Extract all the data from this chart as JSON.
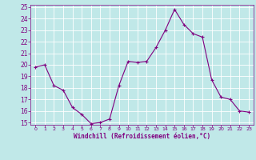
{
  "x": [
    0,
    1,
    2,
    3,
    4,
    5,
    6,
    7,
    8,
    9,
    10,
    11,
    12,
    13,
    14,
    15,
    16,
    17,
    18,
    19,
    20,
    21,
    22,
    23
  ],
  "y": [
    19.8,
    20.0,
    18.2,
    17.8,
    16.3,
    15.7,
    14.9,
    15.0,
    15.3,
    18.2,
    20.3,
    20.2,
    20.3,
    21.5,
    23.0,
    24.8,
    23.5,
    22.7,
    22.4,
    18.7,
    17.2,
    17.0,
    16.0,
    15.9
  ],
  "line_color": "#800080",
  "marker": "+",
  "marker_size": 3,
  "bg_color": "#c0e8e8",
  "grid_color": "#ffffff",
  "xlabel": "Windchill (Refroidissement éolien,°C)",
  "xlabel_color": "#800080",
  "tick_color": "#800080",
  "ylim": [
    15,
    25
  ],
  "xlim": [
    -0.5,
    23.5
  ],
  "yticks": [
    15,
    16,
    17,
    18,
    19,
    20,
    21,
    22,
    23,
    24,
    25
  ],
  "xticks": [
    0,
    1,
    2,
    3,
    4,
    5,
    6,
    7,
    8,
    9,
    10,
    11,
    12,
    13,
    14,
    15,
    16,
    17,
    18,
    19,
    20,
    21,
    22,
    23
  ]
}
